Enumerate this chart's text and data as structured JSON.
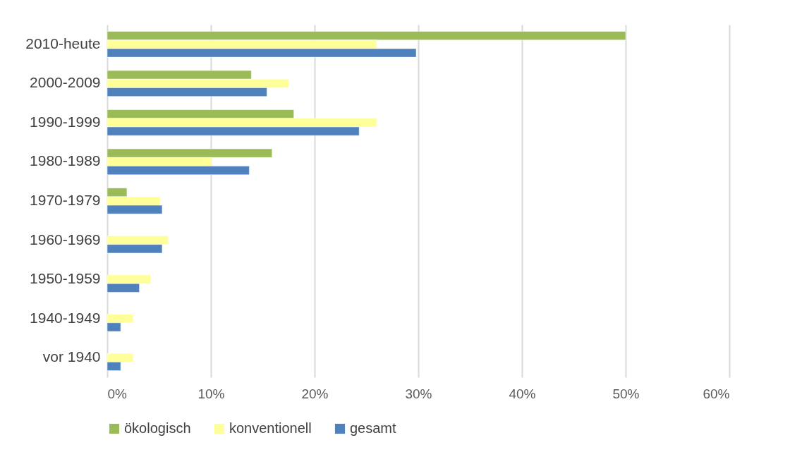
{
  "chart_data": {
    "type": "bar",
    "orientation": "horizontal",
    "categories": [
      "2010-heute",
      "2000-2009",
      "1990-1999",
      "1980-1989",
      "1970-1979",
      "1960-1969",
      "1950-1959",
      "1940-1949",
      "vor 1940"
    ],
    "series": [
      {
        "name": "ökologisch",
        "color": "#9bbb59",
        "values": [
          50,
          13.9,
          18,
          15.9,
          1.9,
          null,
          null,
          null,
          null
        ]
      },
      {
        "name": "konventionell",
        "color": "#ffff99",
        "values": [
          26,
          17.5,
          26,
          10.1,
          5.1,
          5.9,
          4.2,
          2.5,
          2.5
        ]
      },
      {
        "name": "gesamt",
        "color": "#4f81bd",
        "values": [
          29.8,
          15.4,
          24.3,
          13.7,
          5.3,
          5.3,
          3.1,
          1.3,
          1.3
        ]
      }
    ],
    "xlim": [
      0,
      60
    ],
    "xticks": [
      {
        "value": 0,
        "label": "0%"
      },
      {
        "value": 10,
        "label": "10%"
      },
      {
        "value": 20,
        "label": "20%"
      },
      {
        "value": 30,
        "label": "30%"
      },
      {
        "value": 40,
        "label": "40%"
      },
      {
        "value": 50,
        "label": "50%"
      },
      {
        "value": 60,
        "label": "60%"
      }
    ],
    "grid": "x",
    "legend": "bottom"
  }
}
